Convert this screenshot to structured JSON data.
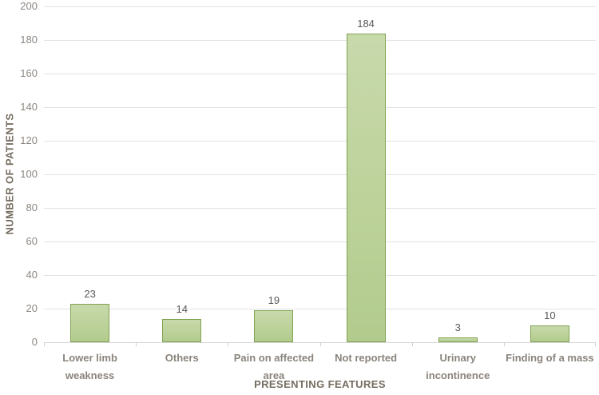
{
  "chart_data": {
    "type": "bar",
    "title": "",
    "categories": [
      "Lower limb weakness",
      "Others",
      "Pain on affected area",
      "Not reported",
      "Urinary incontinence",
      "Finding of a mass"
    ],
    "values": [
      23,
      14,
      19,
      184,
      3,
      10
    ],
    "xlabel": "PRESENTING FEATURES",
    "ylabel": "NUMBER OF PATIENTS",
    "ylim": [
      0,
      200
    ],
    "ytick_step": 20,
    "grid": true,
    "legend": false,
    "bar_value_labels_shown": true
  },
  "colors": {
    "background": "#ffffff",
    "bar_fill_top": "#c8d9ab",
    "bar_fill_mid": "#bcd29a",
    "bar_fill_bottom": "#b2cb8d",
    "bar_border": "#80a350",
    "gridline": "#e2e2e2",
    "axis_line": "#d6d6d6",
    "tick_color": "#cfcfcf",
    "value_label": "#595959",
    "tick_label": "#8c8680",
    "category_label": "#8a847c",
    "axis_title": "#756d60"
  }
}
